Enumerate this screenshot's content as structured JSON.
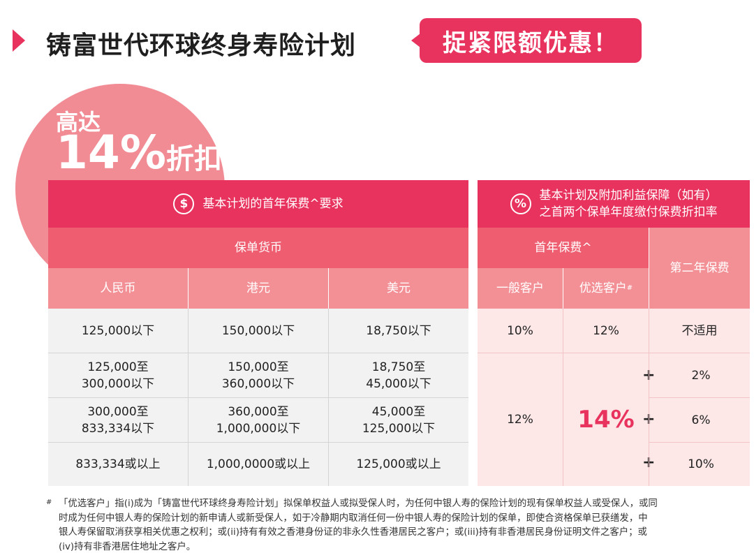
{
  "header": {
    "title": "铸富世代环球终身寿险计划",
    "badge": "捉紧限额优惠！"
  },
  "promo": {
    "line1": "高达",
    "line2_number": "14%",
    "line2_suffix": "折扣"
  },
  "left_table": {
    "title": "基本计划的首年保费^要求",
    "icon": "dollar-icon",
    "currency_header": "保单货币",
    "columns": [
      "人民币",
      "港元",
      "美元"
    ],
    "rows": [
      [
        "125,000以下",
        "150,000以下",
        "18,750以下"
      ],
      [
        [
          "125,000至",
          "300,000以下"
        ],
        [
          "150,000至",
          "360,000以下"
        ],
        [
          "18,750至",
          "45,000以下"
        ]
      ],
      [
        [
          "300,000至",
          "833,334以下"
        ],
        [
          "360,000至",
          "1,000,000以下"
        ],
        [
          "45,000至",
          "125,000以下"
        ]
      ],
      [
        "833,334或以上",
        "1,000,0000或以上",
        "125,000或以上"
      ]
    ]
  },
  "right_table": {
    "title_line1": "基本计划及附加利益保障（如有）",
    "title_line2": "之首两个保单年度缴付保费折扣率",
    "icon": "percent-icon",
    "first_year_header": "首年保费^",
    "second_year_header": "第二年保费",
    "general_client": "一般客户",
    "preferred_client": "优选客户",
    "preferred_mark": "#",
    "row1": {
      "general": "10%",
      "preferred": "12%",
      "second": "不适用"
    },
    "merged": {
      "general": "12%",
      "preferred": "14%"
    },
    "second_year_values": [
      "2%",
      "6%",
      "10%"
    ],
    "plus": "+"
  },
  "footnote": {
    "mark": "#",
    "lines": [
      "「优选客户」指(i)成为「铸富世代环球终身寿险计划」拟保单权益人或拟受保人时，为任何中银人寿的保险计划的现有保单权益人或受保人，或同",
      "时成为任何中银人寿的保险计划的新申请人或新受保人，如于冷静期内取消任何一份中银人寿的保险计划的保单，即使合资格保单已获缮发，中",
      "银人寿保留取消获享相关优惠之权利；或(ii)持有有效之香港身份证的非永久性香港居民之客户；或(iii)持有非香港居民身份证明文件之客户；或",
      "(iv)持有非香港居住地址之客户。"
    ]
  },
  "colors": {
    "accent": "#e8335e",
    "header_mid": "#ee5e70",
    "header_light": "#f39096",
    "circle": "#f18c95",
    "grey_cell": "#f2f2f2",
    "pink_cell": "#fde7e7"
  }
}
